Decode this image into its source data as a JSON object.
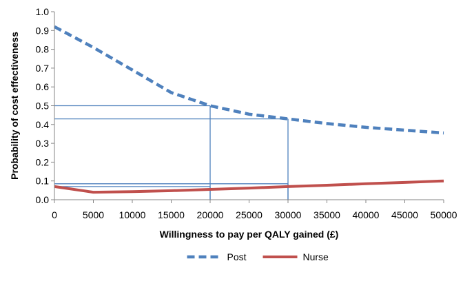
{
  "chart_data": {
    "type": "line",
    "title": "",
    "xlabel": "Willingness to pay per QALY gained (£)",
    "ylabel": "Probability of cost effectiveness",
    "xlim": [
      0,
      50000
    ],
    "ylim": [
      0,
      1.0
    ],
    "x_ticks": [
      "0",
      "5000",
      "10000",
      "15000",
      "20000",
      "25000",
      "30000",
      "35000",
      "40000",
      "45000",
      "50000"
    ],
    "y_ticks": [
      "0.0",
      "0.1",
      "0.2",
      "0.3",
      "0.4",
      "0.5",
      "0.6",
      "0.7",
      "0.8",
      "0.9",
      "1.0"
    ],
    "grid": false,
    "legend_position": "bottom",
    "series": [
      {
        "name": "Post",
        "style": "dashed",
        "color": "#4F81BD",
        "x": [
          0,
          5000,
          10000,
          15000,
          20000,
          25000,
          30000,
          35000,
          40000,
          45000,
          50000
        ],
        "y": [
          0.92,
          0.81,
          0.69,
          0.57,
          0.5,
          0.455,
          0.43,
          0.405,
          0.385,
          0.37,
          0.355
        ]
      },
      {
        "name": "Nurse",
        "style": "solid",
        "color": "#C0504D",
        "x": [
          0,
          5000,
          10000,
          15000,
          20000,
          25000,
          30000,
          35000,
          40000,
          45000,
          50000
        ],
        "y": [
          0.07,
          0.04,
          0.043,
          0.048,
          0.055,
          0.062,
          0.07,
          0.077,
          0.085,
          0.092,
          0.1
        ]
      }
    ],
    "reference_lines_color": "#4F81BD",
    "reference_lines": [
      {
        "x": 20000,
        "y": 0.5
      },
      {
        "x": 30000,
        "y": 0.43
      },
      {
        "x": 20000,
        "y": 0.07
      },
      {
        "x": 30000,
        "y": 0.085
      }
    ]
  }
}
